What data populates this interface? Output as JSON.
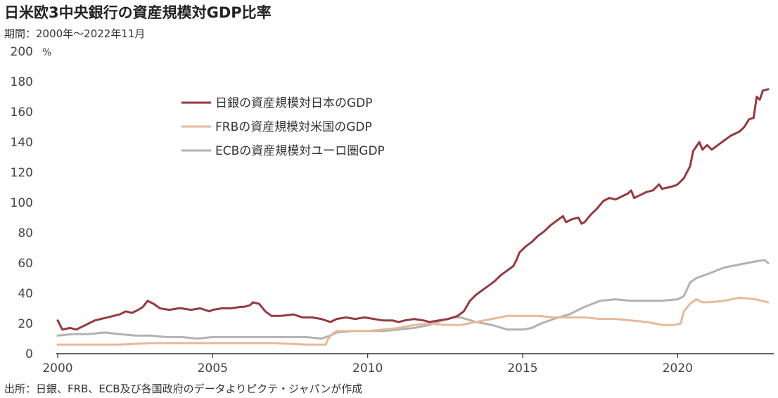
{
  "header": {
    "title": "日米欧3中央銀行の資産規模対GDP比率",
    "period": "期間：2000年～2022年11月"
  },
  "footer": {
    "source": "出所：日銀、FRB、ECB及び各国政府のデータよりピクテ・ジャパンが作成"
  },
  "chart_data": {
    "type": "line",
    "title": "日米欧3中央銀行の資産規模対GDP比率",
    "subtitle": "期間：2000年～2022年11月",
    "ylabel": "%",
    "xlabel": "",
    "xlim": [
      2000.0,
      2022.92
    ],
    "ylim": [
      0,
      200
    ],
    "x_ticks": [
      "2000",
      "2005",
      "2010",
      "2015",
      "2020"
    ],
    "y_ticks": [
      "0",
      "20",
      "40",
      "60",
      "80",
      "100",
      "120",
      "140",
      "160",
      "180",
      "200"
    ],
    "grid": false,
    "legend_position": "top-center",
    "series": [
      {
        "name": "日銀の資産規模対日本のGDP",
        "color": "#953a3f",
        "points": [
          [
            2000.0,
            22
          ],
          [
            2000.15,
            16
          ],
          [
            2000.4,
            17
          ],
          [
            2000.6,
            16
          ],
          [
            2000.8,
            18
          ],
          [
            2001.0,
            20
          ],
          [
            2001.2,
            22
          ],
          [
            2001.4,
            23
          ],
          [
            2001.6,
            24
          ],
          [
            2001.8,
            25
          ],
          [
            2002.0,
            26
          ],
          [
            2002.2,
            28
          ],
          [
            2002.4,
            27
          ],
          [
            2002.6,
            29
          ],
          [
            2002.75,
            31
          ],
          [
            2002.9,
            35
          ],
          [
            2003.1,
            33
          ],
          [
            2003.3,
            30
          ],
          [
            2003.6,
            29
          ],
          [
            2003.9,
            30
          ],
          [
            2004.0,
            30
          ],
          [
            2004.3,
            29
          ],
          [
            2004.6,
            30
          ],
          [
            2004.9,
            28
          ],
          [
            2005.0,
            29
          ],
          [
            2005.3,
            30
          ],
          [
            2005.6,
            30
          ],
          [
            2005.9,
            31
          ],
          [
            2006.0,
            31
          ],
          [
            2006.2,
            32
          ],
          [
            2006.3,
            34
          ],
          [
            2006.5,
            33
          ],
          [
            2006.7,
            28
          ],
          [
            2006.9,
            25
          ],
          [
            2007.2,
            25
          ],
          [
            2007.6,
            26
          ],
          [
            2007.9,
            24
          ],
          [
            2008.2,
            24
          ],
          [
            2008.5,
            23
          ],
          [
            2008.8,
            21
          ],
          [
            2009.0,
            23
          ],
          [
            2009.3,
            24
          ],
          [
            2009.6,
            23
          ],
          [
            2009.9,
            24
          ],
          [
            2010.2,
            23
          ],
          [
            2010.5,
            22
          ],
          [
            2010.8,
            22
          ],
          [
            2011.0,
            21
          ],
          [
            2011.2,
            22
          ],
          [
            2011.5,
            23
          ],
          [
            2011.8,
            22
          ],
          [
            2012.0,
            21
          ],
          [
            2012.3,
            22
          ],
          [
            2012.6,
            23
          ],
          [
            2012.9,
            25
          ],
          [
            2013.1,
            28
          ],
          [
            2013.3,
            35
          ],
          [
            2013.5,
            39
          ],
          [
            2013.7,
            42
          ],
          [
            2013.9,
            45
          ],
          [
            2014.1,
            48
          ],
          [
            2014.3,
            52
          ],
          [
            2014.5,
            55
          ],
          [
            2014.7,
            58
          ],
          [
            2014.8,
            62
          ],
          [
            2014.9,
            67
          ],
          [
            2015.1,
            71
          ],
          [
            2015.3,
            74
          ],
          [
            2015.5,
            78
          ],
          [
            2015.7,
            81
          ],
          [
            2015.9,
            85
          ],
          [
            2016.1,
            88
          ],
          [
            2016.3,
            91
          ],
          [
            2016.4,
            87
          ],
          [
            2016.6,
            89
          ],
          [
            2016.8,
            90
          ],
          [
            2016.9,
            86
          ],
          [
            2017.0,
            87
          ],
          [
            2017.2,
            92
          ],
          [
            2017.4,
            96
          ],
          [
            2017.6,
            101
          ],
          [
            2017.8,
            103
          ],
          [
            2018.0,
            102
          ],
          [
            2018.2,
            104
          ],
          [
            2018.4,
            106
          ],
          [
            2018.5,
            108
          ],
          [
            2018.6,
            103
          ],
          [
            2018.8,
            105
          ],
          [
            2019.0,
            107
          ],
          [
            2019.2,
            108
          ],
          [
            2019.4,
            112
          ],
          [
            2019.5,
            109
          ],
          [
            2019.7,
            110
          ],
          [
            2019.9,
            111
          ],
          [
            2020.0,
            112
          ],
          [
            2020.2,
            116
          ],
          [
            2020.4,
            124
          ],
          [
            2020.5,
            134
          ],
          [
            2020.7,
            140
          ],
          [
            2020.8,
            135
          ],
          [
            2020.95,
            138
          ],
          [
            2021.1,
            135
          ],
          [
            2021.3,
            138
          ],
          [
            2021.5,
            141
          ],
          [
            2021.7,
            144
          ],
          [
            2021.9,
            146
          ],
          [
            2022.0,
            147
          ],
          [
            2022.15,
            150
          ],
          [
            2022.3,
            155
          ],
          [
            2022.45,
            156
          ],
          [
            2022.55,
            170
          ],
          [
            2022.65,
            168
          ],
          [
            2022.75,
            174
          ],
          [
            2022.92,
            175
          ]
        ]
      },
      {
        "name": "FRBの資産規模対米国のGDP",
        "color": "#e7b999",
        "points": [
          [
            2000.0,
            6
          ],
          [
            2001.0,
            6
          ],
          [
            2002.0,
            6
          ],
          [
            2003.0,
            7
          ],
          [
            2004.0,
            7
          ],
          [
            2005.0,
            7
          ],
          [
            2006.0,
            7
          ],
          [
            2007.0,
            7
          ],
          [
            2008.0,
            6
          ],
          [
            2008.65,
            6
          ],
          [
            2008.7,
            9
          ],
          [
            2008.85,
            13
          ],
          [
            2009.0,
            15
          ],
          [
            2009.5,
            15
          ],
          [
            2010.0,
            15
          ],
          [
            2010.5,
            16
          ],
          [
            2011.0,
            17
          ],
          [
            2011.5,
            19
          ],
          [
            2012.0,
            20
          ],
          [
            2012.5,
            19
          ],
          [
            2013.0,
            19
          ],
          [
            2013.5,
            21
          ],
          [
            2014.0,
            23
          ],
          [
            2014.5,
            25
          ],
          [
            2015.0,
            25
          ],
          [
            2015.5,
            25
          ],
          [
            2016.0,
            24
          ],
          [
            2016.5,
            24
          ],
          [
            2017.0,
            24
          ],
          [
            2017.5,
            23
          ],
          [
            2018.0,
            23
          ],
          [
            2018.5,
            22
          ],
          [
            2019.0,
            21
          ],
          [
            2019.5,
            19
          ],
          [
            2019.9,
            19
          ],
          [
            2020.1,
            20
          ],
          [
            2020.2,
            28
          ],
          [
            2020.4,
            33
          ],
          [
            2020.6,
            36
          ],
          [
            2020.8,
            34
          ],
          [
            2021.0,
            34
          ],
          [
            2021.5,
            35
          ],
          [
            2022.0,
            37
          ],
          [
            2022.5,
            36
          ],
          [
            2022.92,
            34
          ]
        ]
      },
      {
        "name": "ECBの資産規模対ユーロ圏GDP",
        "color": "#b2b2b2",
        "points": [
          [
            2000.0,
            12
          ],
          [
            2000.5,
            13
          ],
          [
            2001.0,
            13
          ],
          [
            2001.5,
            14
          ],
          [
            2002.0,
            13
          ],
          [
            2002.5,
            12
          ],
          [
            2003.0,
            12
          ],
          [
            2003.5,
            11
          ],
          [
            2004.0,
            11
          ],
          [
            2004.5,
            10
          ],
          [
            2005.0,
            11
          ],
          [
            2005.5,
            11
          ],
          [
            2006.0,
            11
          ],
          [
            2006.5,
            11
          ],
          [
            2007.0,
            11
          ],
          [
            2007.5,
            11
          ],
          [
            2008.0,
            11
          ],
          [
            2008.5,
            10
          ],
          [
            2008.8,
            12
          ],
          [
            2009.0,
            14
          ],
          [
            2009.5,
            15
          ],
          [
            2010.0,
            15
          ],
          [
            2010.5,
            15
          ],
          [
            2011.0,
            16
          ],
          [
            2011.5,
            17
          ],
          [
            2012.0,
            19
          ],
          [
            2012.4,
            22
          ],
          [
            2012.8,
            24
          ],
          [
            2013.0,
            24
          ],
          [
            2013.5,
            21
          ],
          [
            2014.0,
            19
          ],
          [
            2014.5,
            16
          ],
          [
            2015.0,
            16
          ],
          [
            2015.3,
            17
          ],
          [
            2015.6,
            20
          ],
          [
            2016.0,
            23
          ],
          [
            2016.5,
            26
          ],
          [
            2017.0,
            31
          ],
          [
            2017.5,
            35
          ],
          [
            2018.0,
            36
          ],
          [
            2018.5,
            35
          ],
          [
            2019.0,
            35
          ],
          [
            2019.5,
            35
          ],
          [
            2020.0,
            36
          ],
          [
            2020.2,
            38
          ],
          [
            2020.4,
            47
          ],
          [
            2020.6,
            50
          ],
          [
            2021.0,
            53
          ],
          [
            2021.5,
            57
          ],
          [
            2022.0,
            59
          ],
          [
            2022.5,
            61
          ],
          [
            2022.8,
            62
          ],
          [
            2022.92,
            60
          ]
        ]
      }
    ]
  }
}
